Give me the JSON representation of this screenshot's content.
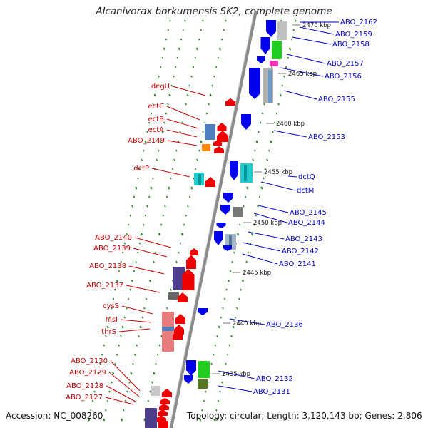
{
  "title": "Alcanivorax borkumensis SK2, complete genome",
  "footer": {
    "accession": "Accession: NC_008260",
    "summary": "Topology: circular; Length: 3,120,143 bp; Genes: 2,806"
  },
  "colors": {
    "forward_label": "#cc0000",
    "reverse_label": "#0000cc",
    "backbone": "#8c8c8c",
    "tick": "#2a8a2a"
  },
  "kbp_marks": [
    "2470 kbp",
    "2465 kbp",
    "2460 kbp",
    "2455 kbp",
    "2450 kbp",
    "2445 kbp",
    "2440 kbp",
    "2435 kbp"
  ],
  "left_labels": [
    "degU",
    "ectC",
    "ectB",
    "ectA",
    "ABO_2149",
    "dctP",
    "ABO_2140",
    "ABO_2139",
    "ABO_2138",
    "ABO_2137",
    "cysS",
    "hisI",
    "thrS",
    "ABO_2130",
    "ABO_2129",
    "ABO_2128",
    "ABO_2127"
  ],
  "right_labels": [
    "ABO_2162",
    "ABO_2159",
    "ABO_2158",
    "ABO_2157",
    "ABO_2156",
    "ABO_2155",
    "ABO_2153",
    "dctQ",
    "dctM",
    "ABO_2145",
    "ABO_2144",
    "ABO_2143",
    "ABO_2142",
    "ABO_2141",
    "ABO_2136",
    "ABO_2132",
    "ABO_2131"
  ]
}
